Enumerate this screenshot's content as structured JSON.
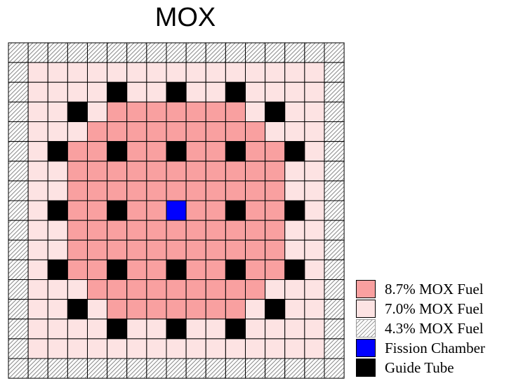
{
  "title": "MOX",
  "materials": {
    "A": {
      "label": "8.7% MOX Fuel",
      "color": "#f9a0a0",
      "pattern": "solid"
    },
    "B": {
      "label": "7.0% MOX Fuel",
      "color": "#fde3e3",
      "pattern": "solid"
    },
    "C": {
      "label": "4.3% MOX Fuel",
      "color": "#ffffff",
      "pattern": "hatch"
    },
    "F": {
      "label": "Fission Chamber",
      "color": "#0000ff",
      "pattern": "solid"
    },
    "G": {
      "label": "Guide Tube",
      "color": "#000000",
      "pattern": "solid"
    }
  },
  "legend_order": [
    "A",
    "B",
    "C",
    "F",
    "G"
  ],
  "grid": [
    "CCCCCCCCCCCCCCCCC",
    "CBBBBBBBBBBBBBBBC",
    "CBBBBGBBGBBGBBBBC",
    "CBBGBAAAAAAABGBBC",
    "CBBBAAAAAAAAABBBC",
    "CBGAAGAAGAAGAAGBC",
    "CBBAAAAAAAAAAABBC",
    "CBBAAAAAAAAAAABBC",
    "CBGAAGAAFAAGAAGBC",
    "CBBAAAAAAAAAAABBC",
    "CBBAAAAAAAAAAABBC",
    "CBGAAGAAGAAGAAGBC",
    "CBBBAAAAAAAAABBBC",
    "CBBGBAAAAAAABGBBC",
    "CBBBBGBBGBBGBBBBC",
    "CBBBBBBBBBBBBBBBC",
    "CCCCCCCCCCCCCCCCC"
  ]
}
